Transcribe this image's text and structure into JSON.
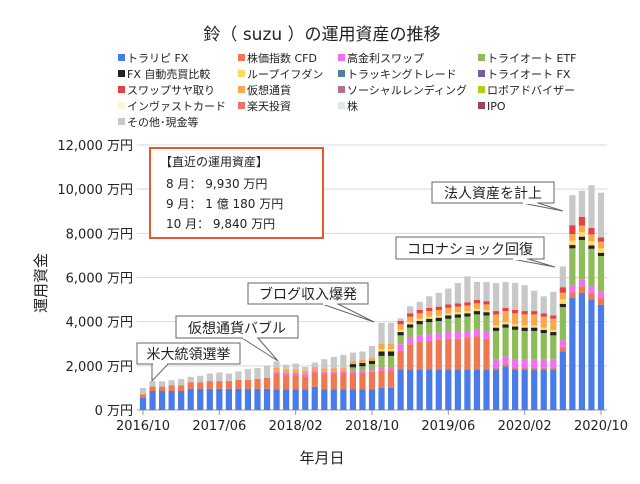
{
  "chart_data": {
    "type": "bar",
    "stacked": true,
    "title": "鈴（ suzu ）の運用資産の推移",
    "xlabel": "年月日",
    "ylabel": "運用資金",
    "ylim": [
      0,
      12000
    ],
    "yticks": [
      0,
      2000,
      4000,
      6000,
      8000,
      10000,
      12000
    ],
    "ytick_labels": [
      "0 万円",
      "2,000 万円",
      "4,000 万円",
      "6,000 万円",
      "8,000 万円",
      "10,000 万円",
      "12,000 万円"
    ],
    "xtick_labels": [
      "2016/10",
      "2017/06",
      "2018/02",
      "2018/10",
      "2019/06",
      "2020/02",
      "2020/10"
    ],
    "grid": true,
    "legend_placement": "top",
    "legend": [
      {
        "name": "トラリピ FX",
        "color": "#4a7bea"
      },
      {
        "name": "株価指数 CFD",
        "color": "#f07850"
      },
      {
        "name": "高金利スワップ",
        "color": "#f070f0"
      },
      {
        "name": "トライオート ETF",
        "color": "#8fbc5a"
      },
      {
        "name": "FX 自動売買比較",
        "color": "#222222"
      },
      {
        "name": "ループイフダン",
        "color": "#ffd966"
      },
      {
        "name": "トラッキングトレード",
        "color": "#4f7fa8"
      },
      {
        "name": "トライオート FX",
        "color": "#7b5aa6"
      },
      {
        "name": "スワップサヤ取り",
        "color": "#e84040"
      },
      {
        "name": "仮想通貨",
        "color": "#f5a850"
      },
      {
        "name": "ソーシャルレンディング",
        "color": "#b07090"
      },
      {
        "name": "ロボアドバイザー",
        "color": "#b5cc18"
      },
      {
        "name": "インヴァストカード",
        "color": "#fff5d0"
      },
      {
        "name": "楽天投資",
        "color": "#f07070"
      },
      {
        "name": "株",
        "color": "#dde8f0"
      },
      {
        "name": "IPO",
        "color": "#a04060"
      },
      {
        "name": "その他･現金等",
        "color": "#c8c8c8"
      }
    ],
    "series": [
      {
        "name": "トラリピ FX",
        "color": "#4a7bea",
        "values": [
          560,
          860,
          860,
          860,
          860,
          960,
          960,
          960,
          960,
          960,
          960,
          960,
          960,
          960,
          930,
          930,
          930,
          930,
          1050,
          930,
          930,
          930,
          930,
          930,
          930,
          1000,
          1000,
          1830,
          1830,
          1830,
          1830,
          1830,
          1830,
          1830,
          1830,
          1830,
          1830,
          1830,
          1980,
          1830,
          1830,
          1830,
          1830,
          1830,
          2660,
          5070,
          5300,
          5000,
          4770
        ]
      },
      {
        "name": "株価指数 CFD",
        "color": "#f07850",
        "values": [
          150,
          200,
          200,
          250,
          250,
          300,
          300,
          350,
          350,
          350,
          400,
          400,
          450,
          500,
          700,
          650,
          650,
          600,
          650,
          700,
          700,
          750,
          750,
          750,
          800,
          800,
          800,
          850,
          1150,
          1250,
          1300,
          1350,
          1400,
          1400,
          1450,
          1500,
          1400,
          100,
          100,
          100,
          100,
          100,
          100,
          100,
          200,
          250,
          300,
          300,
          300
        ]
      },
      {
        "name": "高金利スワップ",
        "color": "#f070f0",
        "values": [
          0,
          0,
          0,
          0,
          0,
          0,
          0,
          0,
          0,
          0,
          0,
          0,
          0,
          0,
          100,
          100,
          100,
          100,
          100,
          100,
          100,
          100,
          100,
          100,
          100,
          150,
          150,
          300,
          300,
          300,
          300,
          300,
          300,
          300,
          300,
          300,
          300,
          350,
          350,
          350,
          350,
          350,
          350,
          350,
          300,
          300,
          300,
          300,
          300
        ]
      },
      {
        "name": "トライオート ETF",
        "color": "#8fbc5a",
        "values": [
          0,
          0,
          0,
          0,
          0,
          0,
          0,
          0,
          0,
          0,
          0,
          0,
          0,
          0,
          0,
          0,
          0,
          0,
          0,
          0,
          0,
          0,
          150,
          200,
          250,
          500,
          500,
          400,
          450,
          500,
          550,
          550,
          600,
          650,
          650,
          700,
          750,
          1300,
          1300,
          1350,
          1300,
          1300,
          1200,
          1100,
          1500,
          1700,
          1800,
          1700,
          1600
        ]
      },
      {
        "name": "FX 自動売買比較",
        "color": "#222222",
        "values": [
          0,
          0,
          0,
          0,
          0,
          0,
          0,
          0,
          0,
          0,
          0,
          0,
          0,
          0,
          0,
          0,
          0,
          0,
          0,
          0,
          0,
          0,
          150,
          150,
          150,
          200,
          200,
          150,
          150,
          150,
          150,
          150,
          150,
          150,
          150,
          150,
          150,
          150,
          150,
          150,
          150,
          150,
          150,
          150,
          150,
          150,
          150,
          150,
          150
        ]
      },
      {
        "name": "ループイフダン",
        "color": "#ffd966",
        "values": [
          0,
          0,
          0,
          0,
          0,
          0,
          0,
          0,
          0,
          0,
          0,
          0,
          0,
          0,
          0,
          0,
          0,
          0,
          0,
          0,
          0,
          0,
          0,
          0,
          0,
          100,
          100,
          100,
          100,
          100,
          100,
          100,
          100,
          100,
          100,
          100,
          100,
          100,
          100,
          100,
          100,
          100,
          100,
          100,
          200,
          200,
          200,
          200,
          200
        ]
      },
      {
        "name": "仮想通貨",
        "color": "#f5a850",
        "values": [
          0,
          0,
          0,
          0,
          0,
          0,
          0,
          0,
          0,
          0,
          0,
          0,
          0,
          0,
          200,
          150,
          150,
          150,
          150,
          150,
          150,
          150,
          150,
          150,
          150,
          250,
          250,
          250,
          250,
          250,
          250,
          250,
          250,
          250,
          250,
          250,
          250,
          500,
          500,
          500,
          500,
          500,
          500,
          500,
          300,
          300,
          300,
          300,
          300
        ]
      },
      {
        "name": "スワップサヤ取り",
        "color": "#e84040",
        "values": [
          0,
          0,
          0,
          0,
          0,
          0,
          0,
          0,
          0,
          0,
          0,
          0,
          0,
          0,
          0,
          0,
          0,
          0,
          0,
          0,
          0,
          0,
          0,
          0,
          0,
          0,
          0,
          150,
          150,
          150,
          150,
          150,
          150,
          150,
          150,
          150,
          150,
          150,
          150,
          150,
          150,
          150,
          150,
          150,
          250,
          400,
          400,
          300,
          200
        ]
      },
      {
        "name": "その他･現金等",
        "color": "#c8c8c8",
        "values": [
          290,
          240,
          240,
          240,
          290,
          240,
          290,
          340,
          390,
          340,
          390,
          490,
          490,
          540,
          270,
          220,
          270,
          170,
          200,
          420,
          520,
          570,
          370,
          370,
          520,
          950,
          950,
          120,
          320,
          370,
          520,
          620,
          720,
          920,
          1170,
          820,
          870,
          1270,
          1170,
          1220,
          1170,
          920,
          770,
          1070,
          940,
          1360,
          1180,
          1930,
          2020
        ]
      }
    ],
    "info_box": {
      "heading": "【直近の運用資産】",
      "lines": [
        "8 月： 9,930 万円",
        "9 月： 1 億 180 万円",
        "10 月： 9,840 万円"
      ]
    },
    "annotations": [
      "米大統領選挙",
      "仮想通貨バブル",
      "ブログ収入爆発",
      "コロナショック回復",
      "法人資産を計上"
    ]
  }
}
